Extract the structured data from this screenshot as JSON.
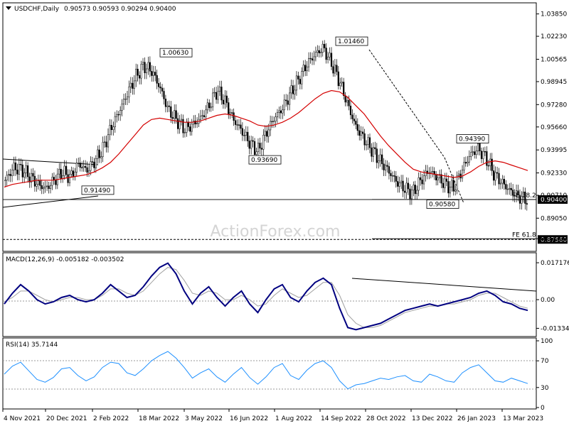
{
  "chart_data": {
    "type": "candlestick",
    "header": {
      "symbol": "USDCHF,Daily",
      "ohlc": "0.90573 0.90593 0.90294 0.90400"
    },
    "watermark": "ActionForex.com",
    "price_axis": {
      "range": [
        0.8675,
        1.0455
      ],
      "ticks": [
        "1.03850",
        "1.02230",
        "1.00565",
        "0.98945",
        "0.97280",
        "0.95660",
        "0.93995",
        "0.92330",
        "0.90710",
        "0.89050",
        "0.87560"
      ],
      "current_price_label": "0.90400",
      "level_label_8756": "0.87560"
    },
    "time_axis": {
      "labels": [
        "4 Nov 2021",
        "20 Dec 2021",
        "2 Feb 2022",
        "18 Mar 2022",
        "3 May 2022",
        "16 Jun 2022",
        "1 Aug 2022",
        "14 Sep 2022",
        "28 Oct 2022",
        "13 Dec 2022",
        "26 Jan 2023",
        "13 Mar 2023"
      ]
    },
    "annotations": [
      {
        "text": "1.00630",
        "price": 1.0063
      },
      {
        "text": "1.01460",
        "price": 1.0146
      },
      {
        "text": "0.93690",
        "price": 0.9369
      },
      {
        "text": "0.94390",
        "price": 0.9439
      },
      {
        "text": "0.91490",
        "price": 0.9149
      },
      {
        "text": "0.90580",
        "price": 0.9058
      }
    ],
    "fib_levels": [
      {
        "text": "FE 38.2",
        "price": 0.904
      },
      {
        "text": "FE 61.8",
        "price": 0.8756
      }
    ],
    "price_path": [
      0.918,
      0.927,
      0.926,
      0.921,
      0.915,
      0.912,
      0.918,
      0.924,
      0.92,
      0.93,
      0.925,
      0.932,
      0.941,
      0.956,
      0.968,
      0.981,
      0.993,
      1.001,
      0.997,
      0.985,
      0.969,
      0.962,
      0.955,
      0.958,
      0.963,
      0.972,
      0.983,
      0.975,
      0.962,
      0.954,
      0.945,
      0.939,
      0.952,
      0.963,
      0.97,
      0.981,
      0.991,
      1.002,
      1.009,
      1.014,
      1.003,
      0.99,
      0.973,
      0.957,
      0.948,
      0.94,
      0.932,
      0.925,
      0.917,
      0.912,
      0.909,
      0.918,
      0.925,
      0.92,
      0.915,
      0.912,
      0.925,
      0.936,
      0.941,
      0.934,
      0.922,
      0.916,
      0.91,
      0.906,
      0.904
    ],
    "ma_path": [
      0.913,
      0.915,
      0.916,
      0.917,
      0.918,
      0.918,
      0.918,
      0.919,
      0.92,
      0.921,
      0.922,
      0.924,
      0.927,
      0.931,
      0.937,
      0.944,
      0.951,
      0.958,
      0.962,
      0.963,
      0.962,
      0.961,
      0.96,
      0.96,
      0.961,
      0.963,
      0.965,
      0.966,
      0.965,
      0.963,
      0.961,
      0.958,
      0.957,
      0.958,
      0.96,
      0.963,
      0.967,
      0.972,
      0.977,
      0.981,
      0.983,
      0.982,
      0.978,
      0.972,
      0.966,
      0.958,
      0.95,
      0.943,
      0.937,
      0.931,
      0.926,
      0.924,
      0.923,
      0.922,
      0.921,
      0.92,
      0.921,
      0.924,
      0.928,
      0.931,
      0.932,
      0.931,
      0.929,
      0.927,
      0.925
    ],
    "macd": {
      "label": "MACD(12,26,9) -0.005182 -0.003502",
      "ticks": [
        "0.017176",
        "0.00",
        "-0.01334"
      ],
      "range": [
        -0.0165,
        0.0205
      ],
      "values": [
        -0.002,
        0.003,
        0.007,
        0.004,
        0.0,
        -0.002,
        -0.001,
        0.001,
        0.002,
        0.0,
        -0.001,
        0.0,
        0.003,
        0.007,
        0.004,
        0.001,
        0.002,
        0.006,
        0.011,
        0.015,
        0.017,
        0.012,
        0.004,
        -0.002,
        0.003,
        0.006,
        0.001,
        -0.003,
        0.001,
        0.004,
        -0.002,
        -0.006,
        0.0,
        0.005,
        0.007,
        0.001,
        -0.001,
        0.004,
        0.008,
        0.01,
        0.007,
        -0.004,
        -0.013,
        -0.014,
        -0.013,
        -0.012,
        -0.011,
        -0.009,
        -0.007,
        -0.005,
        -0.004,
        -0.003,
        -0.002,
        -0.003,
        -0.002,
        -0.001,
        0.0,
        0.001,
        0.003,
        0.004,
        0.002,
        -0.001,
        -0.002,
        -0.004,
        -0.005
      ],
      "signal": [
        -0.001,
        0.001,
        0.004,
        0.004,
        0.002,
        0.0,
        -0.001,
        0.0,
        0.001,
        0.001,
        0.0,
        0.0,
        0.002,
        0.005,
        0.005,
        0.003,
        0.002,
        0.004,
        0.008,
        0.012,
        0.015,
        0.014,
        0.009,
        0.003,
        0.002,
        0.004,
        0.003,
        0.0,
        0.0,
        0.002,
        0.0,
        -0.003,
        -0.002,
        0.002,
        0.005,
        0.003,
        0.001,
        0.002,
        0.005,
        0.008,
        0.008,
        0.002,
        -0.007,
        -0.011,
        -0.013,
        -0.013,
        -0.012,
        -0.01,
        -0.008,
        -0.006,
        -0.005,
        -0.004,
        -0.003,
        -0.003,
        -0.002,
        -0.002,
        -0.001,
        0.0,
        0.002,
        0.003,
        0.003,
        0.001,
        -0.001,
        -0.003,
        -0.004
      ]
    },
    "rsi": {
      "label": "RSI(14) 35.7144",
      "ticks": [
        "100",
        "70",
        "30",
        "0"
      ],
      "range": [
        0,
        100
      ],
      "values": [
        50,
        62,
        68,
        55,
        42,
        38,
        45,
        58,
        60,
        48,
        40,
        46,
        60,
        68,
        66,
        52,
        48,
        58,
        70,
        78,
        84,
        74,
        60,
        44,
        52,
        58,
        46,
        38,
        50,
        60,
        45,
        35,
        46,
        60,
        66,
        48,
        42,
        56,
        66,
        70,
        60,
        40,
        28,
        34,
        36,
        40,
        44,
        42,
        46,
        48,
        40,
        38,
        50,
        46,
        40,
        38,
        52,
        60,
        64,
        52,
        40,
        38,
        44,
        40,
        36
      ]
    }
  }
}
